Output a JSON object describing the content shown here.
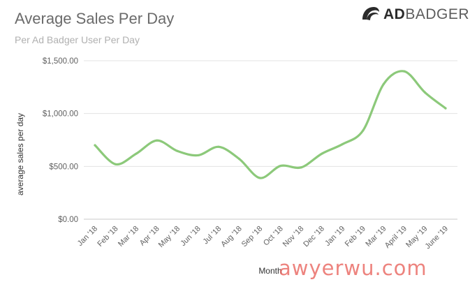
{
  "header": {
    "title": "Average Sales Per Day",
    "subtitle": "Per Ad Badger User Per Day",
    "logo_text_bold": "AD",
    "logo_text_light": "BADGER",
    "logo_icon": "badger-head-icon"
  },
  "watermark": "awyerwu.com",
  "colors": {
    "line": "#8cc97a",
    "grid": "#e3e3e3",
    "text": "#616161"
  },
  "chart_data": {
    "type": "line",
    "title": "Average Sales Per Day",
    "subtitle": "Per Ad Badger User Per Day",
    "xlabel": "Month",
    "ylabel": "average sales per day",
    "ylim": [
      0,
      1500
    ],
    "yticks": [
      0,
      500,
      1000,
      1500
    ],
    "ytick_labels": [
      "$0.00",
      "$500.00",
      "$1,000.00",
      "$1,500.00"
    ],
    "grid": true,
    "legend": "none",
    "categories": [
      "Jan '18",
      "Feb '18",
      "Mar '18",
      "Apr '18",
      "May '18",
      "Jun '18",
      "Jul '18",
      "Aug '18",
      "Sep '18",
      "Oct '18",
      "Nov '18",
      "Dec '18",
      "Jan '19",
      "Feb '19",
      "Mar '19",
      "April '19",
      "May '19",
      "June '19"
    ],
    "series": [
      {
        "values": [
          700,
          520,
          620,
          745,
          645,
          605,
          685,
          570,
          390,
          505,
          490,
          620,
          710,
          840,
          1280,
          1400,
          1200,
          1050
        ]
      }
    ]
  }
}
